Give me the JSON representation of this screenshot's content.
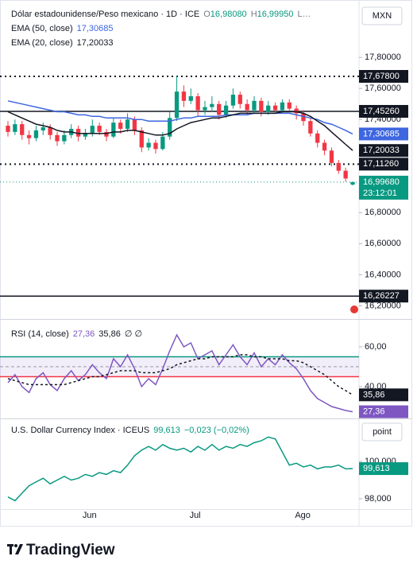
{
  "currency": "MXN",
  "footer": {
    "brand": "TradingView"
  },
  "chart_data": [
    {
      "type": "candlestick",
      "title": "Dólar estadounidense/Peso mexicano · 1D · ICE",
      "legend_ohlc": [
        {
          "key": "O",
          "text": "16,98080"
        },
        {
          "key": "H",
          "text": "16,99950"
        },
        {
          "key": "L…"
        }
      ],
      "up_color": "#089981",
      "down_color": "#f23645",
      "ylim": [
        16.12,
        18.17
      ],
      "yticks": [
        {
          "value": 17.8,
          "label": "17,80000"
        },
        {
          "value": 17.6,
          "label": "17,60000"
        },
        {
          "value": 17.4,
          "label": "17,40000"
        },
        {
          "value": 17.2,
          "label": "17,20000"
        },
        {
          "value": 17.0,
          "label": "17,00000"
        },
        {
          "value": 16.8,
          "label": "16,80000"
        },
        {
          "value": 16.6,
          "label": "16,60000"
        },
        {
          "value": 16.4,
          "label": "16,40000"
        },
        {
          "value": 16.2,
          "label": "16,20000"
        }
      ],
      "open": [
        17.36,
        17.32,
        17.37,
        17.3,
        17.28,
        17.33,
        17.35,
        17.3,
        17.26,
        17.3,
        17.34,
        17.29,
        17.31,
        17.36,
        17.32,
        17.29,
        17.38,
        17.34,
        17.4,
        17.33,
        17.22,
        17.25,
        17.21,
        17.29,
        17.41,
        17.58,
        17.52,
        17.55,
        17.46,
        17.48,
        17.5,
        17.43,
        17.49,
        17.56,
        17.5,
        17.46,
        17.52,
        17.45,
        17.49,
        17.46,
        17.51,
        17.47,
        17.44,
        17.39,
        17.31,
        17.25,
        17.2,
        17.12,
        17.07,
        16.9808
      ],
      "high": [
        17.39,
        17.4,
        17.39,
        17.33,
        17.36,
        17.38,
        17.37,
        17.32,
        17.33,
        17.37,
        17.36,
        17.34,
        17.4,
        17.38,
        17.34,
        17.41,
        17.4,
        17.44,
        17.42,
        17.35,
        17.28,
        17.27,
        17.32,
        17.45,
        17.68,
        17.62,
        17.6,
        17.57,
        17.52,
        17.55,
        17.52,
        17.52,
        17.6,
        17.58,
        17.53,
        17.55,
        17.54,
        17.52,
        17.51,
        17.53,
        17.53,
        17.49,
        17.46,
        17.41,
        17.33,
        17.27,
        17.22,
        17.14,
        17.09,
        16.9995
      ],
      "low": [
        17.29,
        17.3,
        17.27,
        17.24,
        17.26,
        17.3,
        17.27,
        17.23,
        17.24,
        17.28,
        17.26,
        17.27,
        17.29,
        17.3,
        17.26,
        17.28,
        17.31,
        17.32,
        17.3,
        17.19,
        17.2,
        17.18,
        17.2,
        17.27,
        17.39,
        17.48,
        17.5,
        17.42,
        17.43,
        17.45,
        17.4,
        17.41,
        17.47,
        17.47,
        17.43,
        17.44,
        17.42,
        17.43,
        17.44,
        17.44,
        17.45,
        17.4,
        17.36,
        17.29,
        17.22,
        17.17,
        17.1,
        17.05,
        17.0,
        16.975
      ],
      "close": [
        17.32,
        17.37,
        17.3,
        17.28,
        17.33,
        17.35,
        17.3,
        17.26,
        17.3,
        17.34,
        17.29,
        17.31,
        17.36,
        17.32,
        17.29,
        17.38,
        17.34,
        17.4,
        17.33,
        17.22,
        17.25,
        17.21,
        17.29,
        17.41,
        17.58,
        17.52,
        17.55,
        17.46,
        17.48,
        17.5,
        17.43,
        17.49,
        17.56,
        17.5,
        17.46,
        17.52,
        17.45,
        17.49,
        17.46,
        17.51,
        17.47,
        17.44,
        17.39,
        17.31,
        17.25,
        17.2,
        17.12,
        17.07,
        17.02,
        16.9968
      ],
      "last_price": {
        "value": 16.9968,
        "label": "16,99680",
        "countdown": "23:12:01",
        "color": "#089981"
      },
      "overlays": [
        {
          "name": "EMA (50, close)",
          "color": "#3d66e0",
          "last_label": "17,30685",
          "values": [
            17.52,
            17.51,
            17.5,
            17.49,
            17.48,
            17.47,
            17.46,
            17.45,
            17.45,
            17.44,
            17.43,
            17.43,
            17.42,
            17.42,
            17.41,
            17.41,
            17.41,
            17.41,
            17.4,
            17.4,
            17.39,
            17.39,
            17.39,
            17.39,
            17.4,
            17.41,
            17.41,
            17.42,
            17.42,
            17.42,
            17.42,
            17.43,
            17.43,
            17.43,
            17.43,
            17.44,
            17.44,
            17.44,
            17.44,
            17.44,
            17.44,
            17.43,
            17.42,
            17.41,
            17.4,
            17.38,
            17.37,
            17.35,
            17.33,
            17.30685
          ]
        },
        {
          "name": "EMA (20, close)",
          "color": "#131722",
          "last_label": "17,20033",
          "values": [
            17.45,
            17.43,
            17.41,
            17.39,
            17.37,
            17.36,
            17.35,
            17.33,
            17.32,
            17.32,
            17.31,
            17.31,
            17.31,
            17.31,
            17.31,
            17.32,
            17.32,
            17.33,
            17.33,
            17.32,
            17.31,
            17.3,
            17.3,
            17.31,
            17.34,
            17.36,
            17.38,
            17.39,
            17.4,
            17.41,
            17.41,
            17.42,
            17.43,
            17.44,
            17.44,
            17.44,
            17.44,
            17.44,
            17.44,
            17.45,
            17.45,
            17.45,
            17.44,
            17.42,
            17.39,
            17.36,
            17.32,
            17.28,
            17.24,
            17.20033
          ]
        }
      ],
      "price_lines": [
        {
          "value": 17.678,
          "label": "17,67800",
          "style": "dotted"
        },
        {
          "value": 17.4526,
          "label": "17,45260",
          "style": "solid"
        },
        {
          "value": 17.1126,
          "label": "17,11260",
          "style": "dotted"
        },
        {
          "value": 16.26227,
          "label": "16,26227",
          "style": "solid"
        }
      ]
    },
    {
      "type": "line",
      "ylim": [
        24.4,
        73.2
      ],
      "yticks": [
        {
          "value": 60,
          "label": "60,00"
        },
        {
          "value": 40,
          "label": "40,00"
        }
      ],
      "legend_extra": "∅ ∅",
      "bands": [
        {
          "value": 55,
          "color": "#089981"
        },
        {
          "value": 45,
          "color": "#f23645"
        }
      ],
      "midline": 50,
      "series": [
        {
          "name": "RSI (14, close)",
          "color": "#7e57c2",
          "style": "solid",
          "last_label": "27,36",
          "values": [
            42,
            46,
            40,
            37,
            44,
            47,
            41,
            38,
            44,
            48,
            43,
            46,
            51,
            47,
            44,
            54,
            50,
            56,
            49,
            40,
            44,
            41,
            49,
            58,
            66,
            60,
            62,
            54,
            56,
            58,
            51,
            56,
            61,
            55,
            51,
            57,
            50,
            54,
            51,
            56,
            52,
            49,
            44,
            38,
            34,
            32,
            30,
            29,
            28,
            27.36
          ]
        },
        {
          "color": "#131722",
          "style": "dashed",
          "last_label": "35,86",
          "values": [
            44,
            43,
            42,
            41,
            41,
            41,
            41,
            41,
            41,
            42,
            43,
            44,
            45,
            45,
            46,
            47,
            48,
            48,
            48,
            47,
            47,
            47,
            48,
            49,
            51,
            52,
            53,
            54,
            54,
            55,
            55,
            55,
            55,
            56,
            56,
            55,
            55,
            54,
            54,
            54,
            53,
            53,
            52,
            50,
            48,
            46,
            43,
            40,
            38,
            35.86
          ]
        }
      ]
    },
    {
      "type": "line",
      "title": "U.S. Dollar Currency Index · ICEUS",
      "change": "−0,023 (−0,02%)",
      "scale_button": "point",
      "ylim": [
        97.447,
        102.255
      ],
      "yticks": [
        {
          "value": 100,
          "label": "100,000"
        },
        {
          "value": 98,
          "label": "98,000"
        }
      ],
      "xticks": [
        {
          "value": 11.6,
          "label": "Jun"
        },
        {
          "value": 26.6,
          "label": "Jul"
        },
        {
          "value": 41.9,
          "label": "Ago"
        }
      ],
      "series": [
        {
          "color": "#089981",
          "style": "solid",
          "last_label": "99,613",
          "values": [
            98.1,
            97.9,
            98.3,
            98.7,
            98.9,
            99.1,
            98.8,
            99.0,
            99.2,
            99.0,
            99.1,
            99.3,
            99.2,
            99.4,
            99.3,
            99.5,
            99.4,
            99.8,
            100.3,
            100.6,
            100.8,
            100.6,
            100.9,
            100.7,
            100.6,
            100.7,
            100.5,
            100.8,
            100.6,
            100.9,
            100.6,
            100.8,
            100.7,
            100.9,
            100.8,
            101.0,
            101.1,
            101.3,
            101.2,
            100.5,
            99.8,
            99.9,
            99.7,
            99.8,
            99.6,
            99.7,
            99.7,
            99.8,
            99.6,
            99.613
          ]
        }
      ]
    }
  ]
}
